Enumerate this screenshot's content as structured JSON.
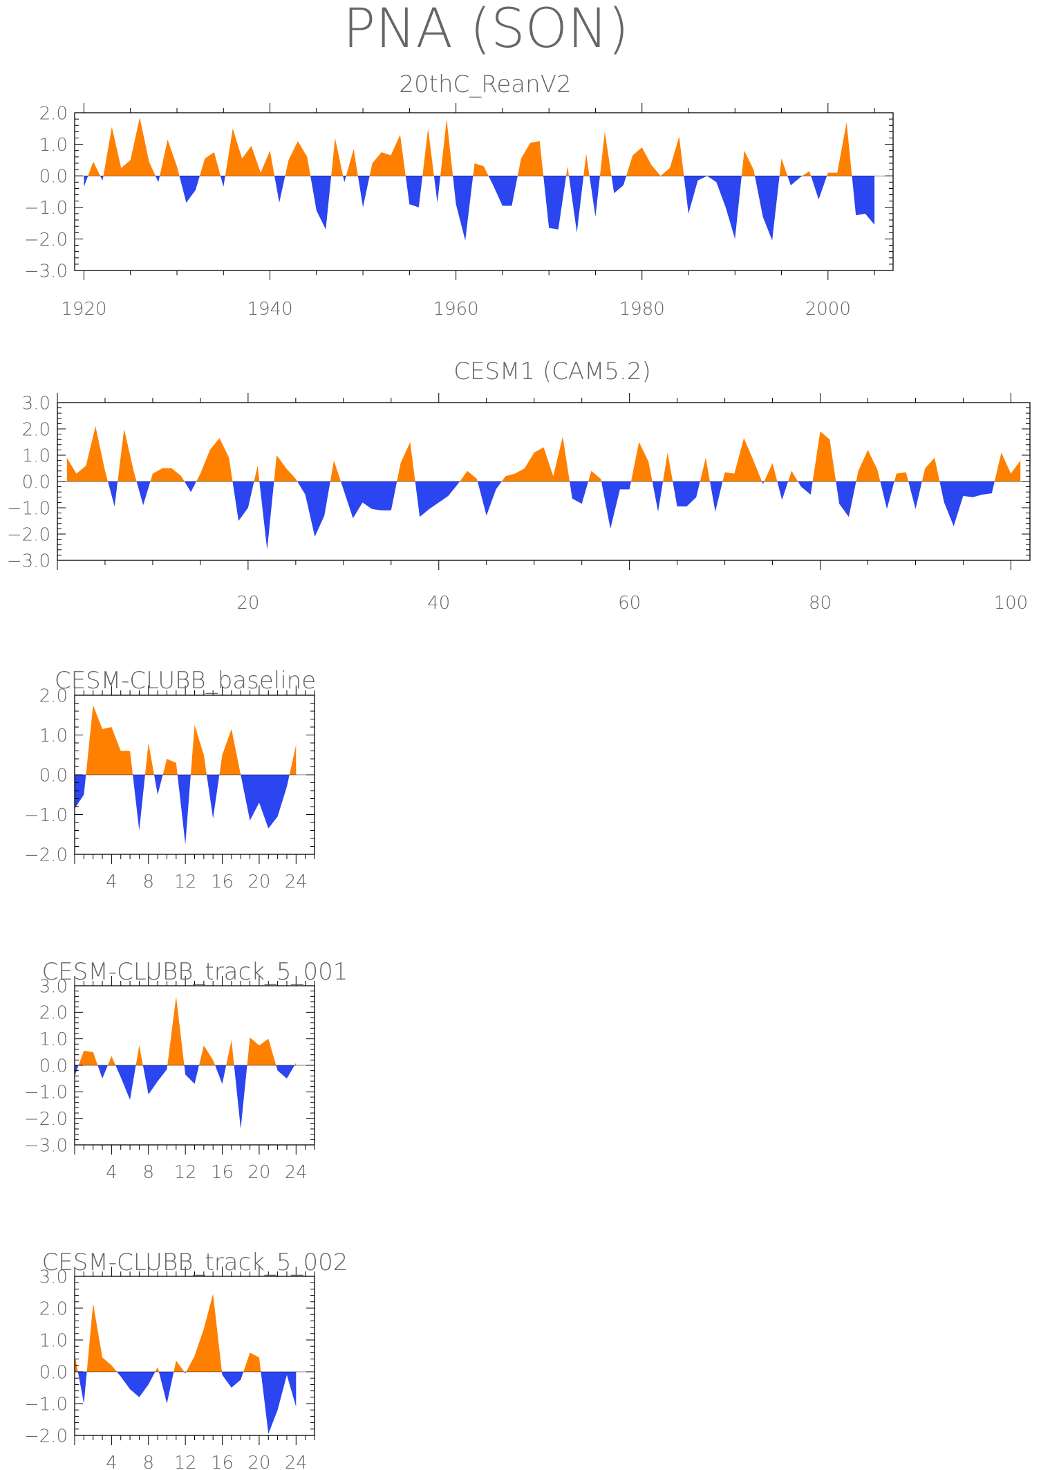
{
  "page_title": "PNA (SON)",
  "colors": {
    "positive": "#ff8000",
    "negative": "#2b45f0",
    "axis": "#000000",
    "text": "#666666"
  },
  "chart_data": [
    {
      "type": "area",
      "title": "20thC_ReanV2",
      "xlabel": "",
      "ylabel": "",
      "xlim": [
        1919,
        2007
      ],
      "ylim": [
        -3,
        2
      ],
      "yticks": [
        "2.0",
        "1.0",
        "0.0",
        "-1.0",
        "-2.0",
        "-3.0"
      ],
      "yticks_values": [
        2,
        1,
        0,
        -1,
        -2,
        -3
      ],
      "xticks": [
        "1920",
        "1940",
        "1960",
        "1980",
        "2000"
      ],
      "xticks_values": [
        1920,
        1940,
        1960,
        1980,
        2000
      ],
      "grid": false,
      "x_start": 1920,
      "values": [
        -0.35,
        0.45,
        -0.15,
        1.55,
        0.25,
        0.5,
        1.85,
        0.45,
        -0.2,
        1.15,
        0.3,
        -0.85,
        -0.45,
        0.55,
        0.75,
        -0.35,
        1.5,
        0.55,
        0.95,
        0.1,
        0.8,
        -0.85,
        0.5,
        1.1,
        0.6,
        -1.1,
        -1.7,
        1.2,
        -0.2,
        0.85,
        -1.0,
        0.4,
        0.75,
        0.65,
        1.3,
        -0.9,
        -1.0,
        1.5,
        -0.85,
        1.8,
        -0.9,
        -2.05,
        0.4,
        0.3,
        -0.3,
        -0.95,
        -0.95,
        0.55,
        1.05,
        1.1,
        -1.65,
        -1.7,
        0.3,
        -1.8,
        0.7,
        -1.3,
        1.4,
        -0.55,
        -0.3,
        0.65,
        0.9,
        0.35,
        0.0,
        0.25,
        1.25,
        -1.2,
        -0.15,
        0.0,
        -0.2,
        -1.0,
        -2.0,
        0.8,
        0.2,
        -1.3,
        -2.05,
        0.55,
        -0.3,
        -0.05,
        0.15,
        -0.75,
        0.1,
        0.1,
        1.7,
        -1.25,
        -1.2,
        -1.55
      ]
    },
    {
      "type": "area",
      "title": "CESM1 (CAM5.2)",
      "xlabel": "",
      "ylabel": "",
      "xlim": [
        0,
        102
      ],
      "ylim": [
        -3,
        3
      ],
      "yticks": [
        "3.0",
        "2.0",
        "1.0",
        "0.0",
        "-1.0",
        "-2.0",
        "-3.0"
      ],
      "yticks_values": [
        3,
        2,
        1,
        0,
        -1,
        -2,
        -3
      ],
      "xticks": [
        "20",
        "40",
        "60",
        "80",
        "100"
      ],
      "xticks_values": [
        20,
        40,
        60,
        80,
        100
      ],
      "grid": false,
      "x_start": 1,
      "values": [
        0.9,
        0.3,
        0.6,
        2.1,
        0.4,
        -0.95,
        2.0,
        0.4,
        -0.9,
        0.3,
        0.5,
        0.5,
        0.2,
        -0.4,
        0.3,
        1.2,
        1.65,
        0.9,
        -1.5,
        -1.0,
        0.6,
        -2.6,
        1.0,
        0.5,
        0.1,
        -0.5,
        -2.1,
        -1.3,
        0.8,
        -0.3,
        -1.4,
        -0.8,
        -1.05,
        -1.1,
        -1.1,
        0.7,
        1.5,
        -1.35,
        -1.05,
        -0.8,
        -0.55,
        -0.1,
        0.4,
        0.1,
        -1.3,
        -0.3,
        0.2,
        0.3,
        0.5,
        1.1,
        1.3,
        0.2,
        1.7,
        -0.65,
        -0.85,
        0.4,
        0.1,
        -1.8,
        -0.3,
        -0.3,
        1.5,
        0.75,
        -1.15,
        1.1,
        -0.95,
        -0.95,
        -0.6,
        0.9,
        -1.15,
        0.35,
        0.3,
        1.65,
        0.8,
        -0.1,
        0.7,
        -0.7,
        0.4,
        -0.2,
        -0.5,
        1.9,
        1.6,
        -0.85,
        -1.35,
        0.4,
        1.2,
        0.45,
        -1.05,
        0.3,
        0.35,
        -1.05,
        0.5,
        0.9,
        -0.8,
        -1.7,
        -0.55,
        -0.6,
        -0.5,
        -0.45,
        1.1,
        0.3,
        0.8
      ]
    },
    {
      "type": "area",
      "title": "CESM-CLUBB_baseline",
      "xlabel": "",
      "ylabel": "",
      "xlim": [
        0,
        26
      ],
      "ylim": [
        -2,
        2
      ],
      "yticks": [
        "2.0",
        "1.0",
        "0.0",
        "-1.0",
        "-2.0"
      ],
      "yticks_values": [
        2,
        1,
        0,
        -1,
        -2
      ],
      "xticks": [
        "4",
        "8",
        "12",
        "16",
        "20",
        "24"
      ],
      "xticks_values": [
        4,
        8,
        12,
        16,
        20,
        24
      ],
      "grid": false,
      "x_start": 0,
      "values": [
        -0.85,
        -0.5,
        1.75,
        1.15,
        1.2,
        0.6,
        0.6,
        -1.4,
        0.8,
        -0.5,
        0.4,
        0.3,
        -1.75,
        1.25,
        0.5,
        -1.1,
        0.5,
        1.15,
        0.0,
        -1.15,
        -0.7,
        -1.35,
        -1.05,
        -0.3,
        0.75
      ]
    },
    {
      "type": "area",
      "title": "CESM-CLUBB_track_5_001",
      "xlabel": "",
      "ylabel": "",
      "xlim": [
        0,
        26
      ],
      "ylim": [
        -3,
        3
      ],
      "yticks": [
        "3.0",
        "2.0",
        "1.0",
        "0.0",
        "-1.0",
        "-2.0",
        "-3.0"
      ],
      "yticks_values": [
        3,
        2,
        1,
        0,
        -1,
        -2,
        -3
      ],
      "xticks": [
        "4",
        "8",
        "12",
        "16",
        "20",
        "24"
      ],
      "xticks_values": [
        4,
        8,
        12,
        16,
        20,
        24
      ],
      "grid": false,
      "x_start": 0,
      "values": [
        -0.4,
        0.55,
        0.5,
        -0.5,
        0.35,
        -0.45,
        -1.3,
        0.75,
        -1.1,
        -0.6,
        -0.15,
        2.6,
        -0.35,
        -0.7,
        0.75,
        0.2,
        -0.7,
        0.95,
        -2.4,
        1.05,
        0.75,
        1.0,
        -0.2,
        -0.5,
        0.1
      ]
    },
    {
      "type": "area",
      "title": "CESM-CLUBB_track_5_002",
      "xlabel": "",
      "ylabel": "",
      "xlim": [
        0,
        26
      ],
      "ylim": [
        -2,
        3
      ],
      "yticks": [
        "3.0",
        "2.0",
        "1.0",
        "0.0",
        "-1.0",
        "-2.0"
      ],
      "yticks_values": [
        3,
        2,
        1,
        0,
        -1,
        -2
      ],
      "xticks": [
        "4",
        "8",
        "12",
        "16",
        "20",
        "24"
      ],
      "xticks_values": [
        4,
        8,
        12,
        16,
        20,
        24
      ],
      "grid": false,
      "x_start": 0,
      "values": [
        0.55,
        -1.0,
        2.15,
        0.45,
        0.2,
        -0.15,
        -0.55,
        -0.8,
        -0.4,
        0.15,
        -1.0,
        0.35,
        -0.05,
        0.5,
        1.35,
        2.45,
        -0.1,
        -0.5,
        -0.25,
        0.6,
        0.45,
        -1.95,
        -1.2,
        -0.1,
        -1.1
      ]
    }
  ]
}
